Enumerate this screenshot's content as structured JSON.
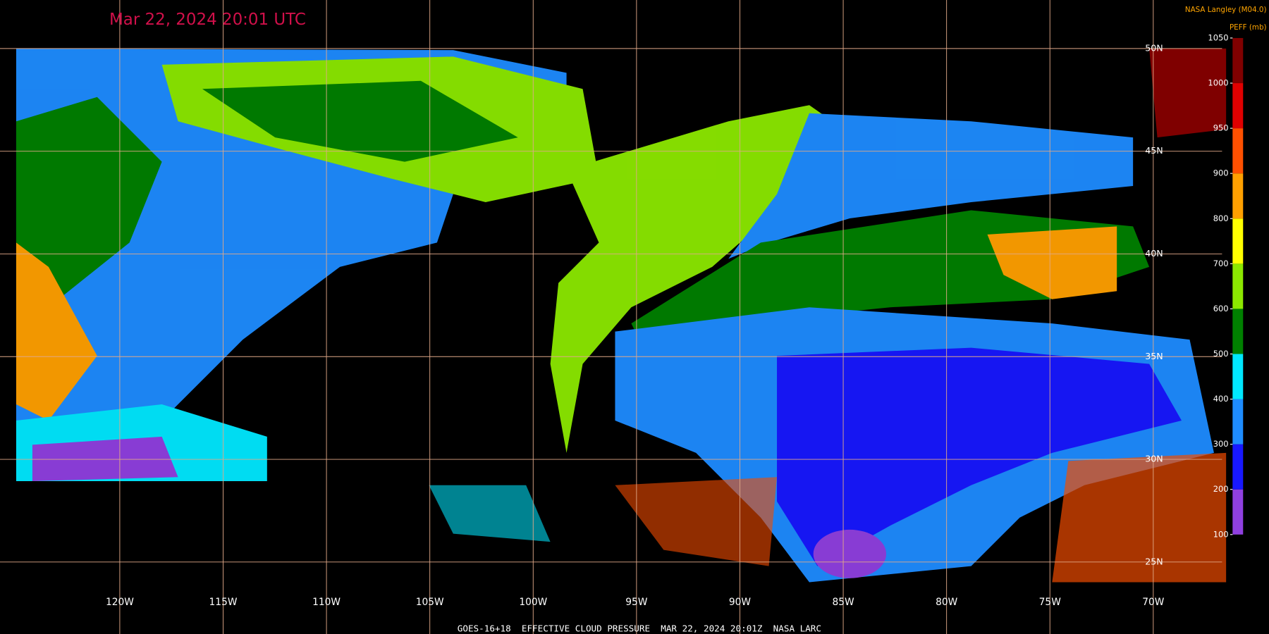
{
  "title": "Mar 22, 2024 20:01 UTC",
  "credit": "NASA Langley (M04.0)",
  "colorbar": {
    "label": "PEFF (mb)",
    "ticks": [
      100,
      200,
      300,
      400,
      500,
      600,
      700,
      800,
      900,
      950,
      1000,
      1050
    ],
    "colors": [
      "#9040e0",
      "#1818ff",
      "#1e8cff",
      "#00e8ff",
      "#008000",
      "#8ce800",
      "#ffff00",
      "#ffa000",
      "#ff5000",
      "#e00000",
      "#800000"
    ]
  },
  "longitudes": [
    {
      "value": -120,
      "label": "120W"
    },
    {
      "value": -115,
      "label": "115W"
    },
    {
      "value": -110,
      "label": "110W"
    },
    {
      "value": -105,
      "label": "105W"
    },
    {
      "value": -100,
      "label": "100W"
    },
    {
      "value": -95,
      "label": "95W"
    },
    {
      "value": -90,
      "label": "90W"
    },
    {
      "value": -85,
      "label": "85W"
    },
    {
      "value": -80,
      "label": "80W"
    },
    {
      "value": -75,
      "label": "75W"
    },
    {
      "value": -70,
      "label": "70W"
    }
  ],
  "latitudes": [
    {
      "value": 50,
      "label": "50N"
    },
    {
      "value": 45,
      "label": "45N"
    },
    {
      "value": 40,
      "label": "40N"
    },
    {
      "value": 35,
      "label": "35N"
    },
    {
      "value": 30,
      "label": "30N"
    },
    {
      "value": 25,
      "label": "25N"
    }
  ],
  "footer": "GOES-16+18  EFFECTIVE CLOUD PRESSURE  MAR 22, 2024 20:01Z  NASA LARC"
}
